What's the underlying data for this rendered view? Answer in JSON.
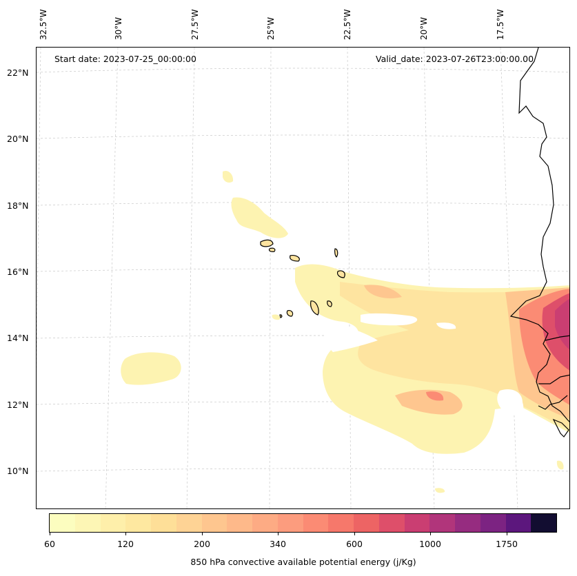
{
  "header": {
    "start_date": "Start date: 2023-07-25_00:00:00",
    "valid_date": "Valid_date: 2023-07-26T23:00:00.00"
  },
  "longitude_labels": [
    "32.5°W",
    "30°W",
    "27.5°W",
    "25°W",
    "22.5°W",
    "20°W",
    "17.5°W"
  ],
  "latitude_labels": [
    "22°N",
    "20°N",
    "18°N",
    "16°N",
    "14°N",
    "12°N",
    "10°N"
  ],
  "colorbar": {
    "label": "850 hPa convective available potential energy (j/Kg)",
    "ticks": [
      "60",
      "120",
      "200",
      "340",
      "600",
      "1000",
      "1750"
    ],
    "colors": [
      "#fcfdbf",
      "#fdf6b5",
      "#feefaa",
      "#fee8a0",
      "#fedf98",
      "#fed395",
      "#fec68f",
      "#feb98a",
      "#fdab84",
      "#fc9c7e",
      "#fb8b74",
      "#f6786b",
      "#ed6464",
      "#de4f6a",
      "#ca3e72",
      "#b1357b",
      "#962c80",
      "#7c2382",
      "#5c177d",
      "#120d31"
    ]
  },
  "map": {
    "region": "Eastern North Atlantic / West Africa",
    "features": [
      "Cape Verde Islands",
      "West African coastline"
    ]
  }
}
